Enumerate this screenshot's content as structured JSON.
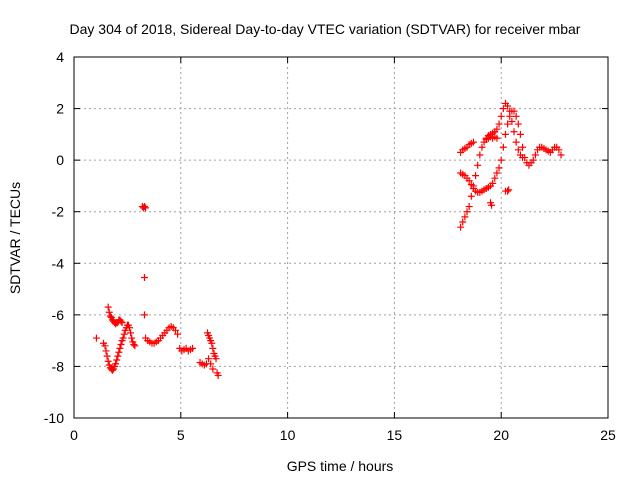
{
  "chart_data": {
    "type": "scatter",
    "title": "Day 304 of 2018, Sidereal Day-to-day VTEC variation (SDTVAR) for receiver mbar",
    "xlabel": "GPS time / hours",
    "ylabel": "SDTVAR / TECUs",
    "xlim": [
      0,
      25
    ],
    "ylim": [
      -10,
      4
    ],
    "xticks": [
      "0",
      "5",
      "10",
      "15",
      "20",
      "25"
    ],
    "yticks": [
      "4",
      "2",
      "0",
      "-2",
      "-4",
      "-6",
      "-8",
      "-10"
    ],
    "grid": true,
    "marker": "+",
    "color": "#ff0000",
    "series": [
      {
        "x": [
          1.05,
          1.38,
          1.45,
          1.5,
          1.55,
          1.6,
          1.65,
          1.7,
          1.75,
          1.8,
          1.85,
          1.9,
          1.95,
          2.0,
          2.05,
          2.1,
          2.15,
          2.2,
          2.25,
          2.3,
          2.35,
          2.4,
          2.45,
          2.5,
          2.55,
          2.6,
          2.65,
          2.7,
          2.75,
          2.8,
          2.85,
          1.6,
          1.65,
          1.7,
          1.75,
          1.8,
          1.85,
          1.9,
          1.95,
          2.0,
          2.05,
          2.1,
          2.15,
          2.2,
          2.25,
          3.2,
          3.25,
          3.3,
          3.35,
          3.3,
          3.3,
          3.35,
          3.45,
          3.55,
          3.65,
          3.75,
          3.85,
          3.95,
          4.05,
          4.15,
          4.25,
          4.35,
          4.45,
          4.55,
          4.65,
          4.75,
          4.85,
          4.95,
          5.05,
          5.15,
          5.25,
          5.35,
          5.45,
          5.55,
          5.9,
          6.0,
          6.1,
          6.2,
          6.25,
          6.3,
          6.35,
          6.4,
          6.45,
          6.5,
          6.55,
          6.6,
          6.65,
          6.7,
          6.75,
          6.3,
          6.4,
          6.5,
          18.1,
          18.2,
          18.3,
          18.4,
          18.5,
          18.6,
          18.7,
          18.8,
          18.9,
          19.0,
          19.1,
          19.2,
          19.3,
          19.4,
          19.5,
          19.6,
          19.7,
          19.8,
          19.9,
          20.0,
          20.1,
          20.2,
          20.3,
          20.4,
          20.5,
          20.6,
          20.7,
          20.8,
          20.9,
          21.0,
          21.1,
          21.2,
          21.3,
          21.4,
          21.5,
          21.6,
          21.7,
          21.8,
          21.9,
          22.0,
          22.1,
          22.2,
          22.3,
          22.4,
          22.5,
          22.6,
          22.7,
          22.8,
          18.1,
          18.2,
          18.3,
          18.4,
          18.5,
          18.6,
          18.7,
          18.8,
          18.9,
          19.0,
          19.1,
          19.2,
          19.3,
          19.4,
          19.5,
          19.6,
          19.7,
          19.8,
          19.9,
          20.0,
          20.1,
          20.2,
          20.3,
          20.4,
          20.5,
          20.6,
          20.7,
          20.8,
          20.9,
          21.0,
          18.1,
          18.2,
          18.3,
          18.4,
          18.5,
          18.6,
          18.7,
          19.3,
          19.4,
          19.5,
          19.6,
          19.7,
          19.8,
          19.5,
          19.55,
          20.2,
          20.3,
          20.35
        ],
        "y": [
          -6.9,
          -7.1,
          -7.2,
          -7.4,
          -7.6,
          -7.8,
          -7.95,
          -8.05,
          -8.1,
          -8.15,
          -8.1,
          -8.0,
          -7.9,
          -7.75,
          -7.6,
          -7.45,
          -7.3,
          -7.15,
          -7.0,
          -6.9,
          -6.75,
          -6.6,
          -6.5,
          -6.4,
          -6.4,
          -6.5,
          -6.7,
          -6.9,
          -7.05,
          -7.15,
          -7.2,
          -5.7,
          -5.9,
          -6.05,
          -6.1,
          -6.2,
          -6.25,
          -6.3,
          -6.35,
          -6.3,
          -6.3,
          -6.2,
          -6.2,
          -6.25,
          -6.3,
          -1.8,
          -1.85,
          -1.8,
          -1.85,
          -4.55,
          -6.0,
          -6.9,
          -7.0,
          -7.05,
          -7.1,
          -7.1,
          -7.05,
          -7.0,
          -6.9,
          -6.8,
          -6.7,
          -6.6,
          -6.5,
          -6.45,
          -6.5,
          -6.6,
          -6.75,
          -7.3,
          -7.4,
          -7.35,
          -7.3,
          -7.4,
          -7.35,
          -7.3,
          -7.85,
          -7.9,
          -7.95,
          -7.9,
          -6.7,
          -6.8,
          -6.9,
          -7.0,
          -7.1,
          -7.3,
          -7.5,
          -7.6,
          -7.7,
          -8.25,
          -8.35,
          -7.7,
          -7.9,
          -8.1,
          -0.5,
          -0.55,
          -0.6,
          -0.7,
          -0.8,
          -0.95,
          -1.1,
          -1.2,
          -1.25,
          -1.25,
          -1.2,
          -1.15,
          -1.1,
          -1.05,
          -1.0,
          -0.9,
          -0.7,
          -0.5,
          -0.3,
          0.0,
          0.5,
          1.0,
          1.4,
          1.7,
          1.9,
          1.9,
          1.7,
          1.4,
          1.0,
          0.5,
          0.1,
          -0.1,
          -0.2,
          -0.1,
          0.0,
          0.2,
          0.4,
          0.5,
          0.5,
          0.45,
          0.4,
          0.35,
          0.3,
          0.4,
          0.5,
          0.5,
          0.4,
          0.2,
          -2.6,
          -2.4,
          -2.2,
          -2.0,
          -1.8,
          -1.4,
          -1.0,
          -0.6,
          -0.2,
          0.2,
          0.5,
          0.7,
          0.85,
          0.95,
          1.0,
          1.05,
          1.1,
          1.2,
          1.4,
          1.7,
          2.0,
          2.2,
          2.1,
          1.9,
          1.5,
          1.1,
          0.7,
          0.4,
          0.2,
          0.1,
          0.3,
          0.4,
          0.45,
          0.5,
          0.6,
          0.65,
          0.7,
          0.8,
          0.85,
          0.9,
          0.85,
          0.9,
          0.85,
          -1.65,
          -1.75,
          -1.2,
          -1.2,
          -1.15
        ]
      }
    ]
  }
}
